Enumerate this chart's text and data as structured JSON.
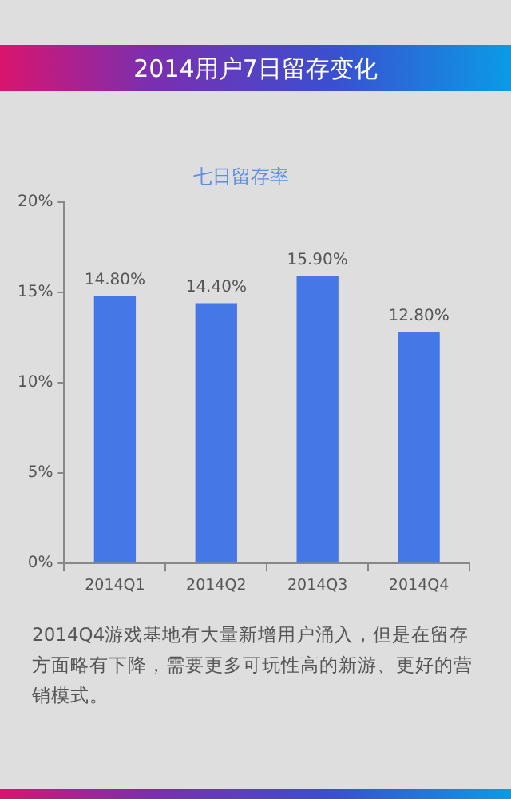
{
  "chart_data": {
    "type": "bar",
    "title": "2014用户7日留存变化",
    "subtitle": "七日留存率",
    "categories": [
      "2014Q1",
      "2014Q2",
      "2014Q3",
      "2014Q4"
    ],
    "values": [
      14.8,
      14.4,
      15.9,
      12.8
    ],
    "color": "#4677e6",
    "value_labels": [
      "14.80%",
      "14.40%",
      "15.90%",
      "12.80%"
    ],
    "ylim": [
      0,
      20
    ],
    "yticks": [
      {
        "value": 0,
        "label": "0%"
      },
      {
        "value": 5,
        "label": "5%"
      },
      {
        "value": 10,
        "label": "10%"
      },
      {
        "value": 15,
        "label": "15%"
      },
      {
        "value": 20,
        "label": "20%"
      }
    ],
    "grid": false,
    "legend": false,
    "annotations": [
      "2014Q4游戏基地有大量新增用户涌入，但是在留存方面略有下降，需要更多可玩性高的新游、更好的营销模式。"
    ]
  }
}
